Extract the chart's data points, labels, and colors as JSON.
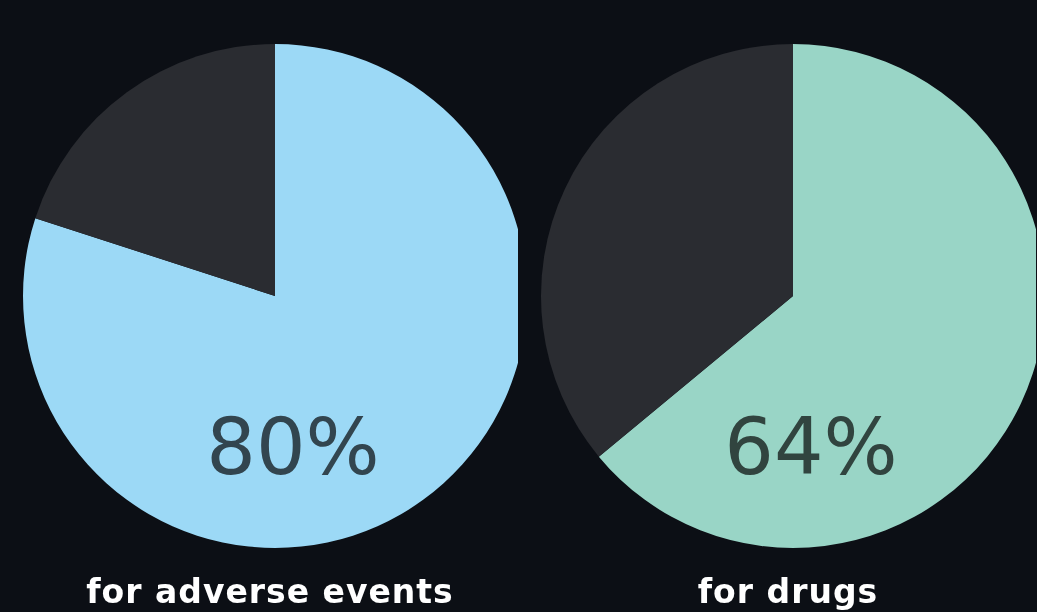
{
  "chart_data": [
    {
      "type": "pie",
      "categories": [
        null,
        null
      ],
      "values": [
        80,
        20
      ],
      "colors": [
        "#9cd9f6",
        "#2a2c31"
      ],
      "value_labels": [
        "80%",
        null
      ],
      "xlabel": "for adverse events"
    },
    {
      "type": "pie",
      "categories": [
        null,
        null
      ],
      "values": [
        64,
        36
      ],
      "colors": [
        "#99d5c6",
        "#2a2c31"
      ],
      "value_labels": [
        "64%",
        null
      ],
      "xlabel": "for drugs"
    }
  ]
}
